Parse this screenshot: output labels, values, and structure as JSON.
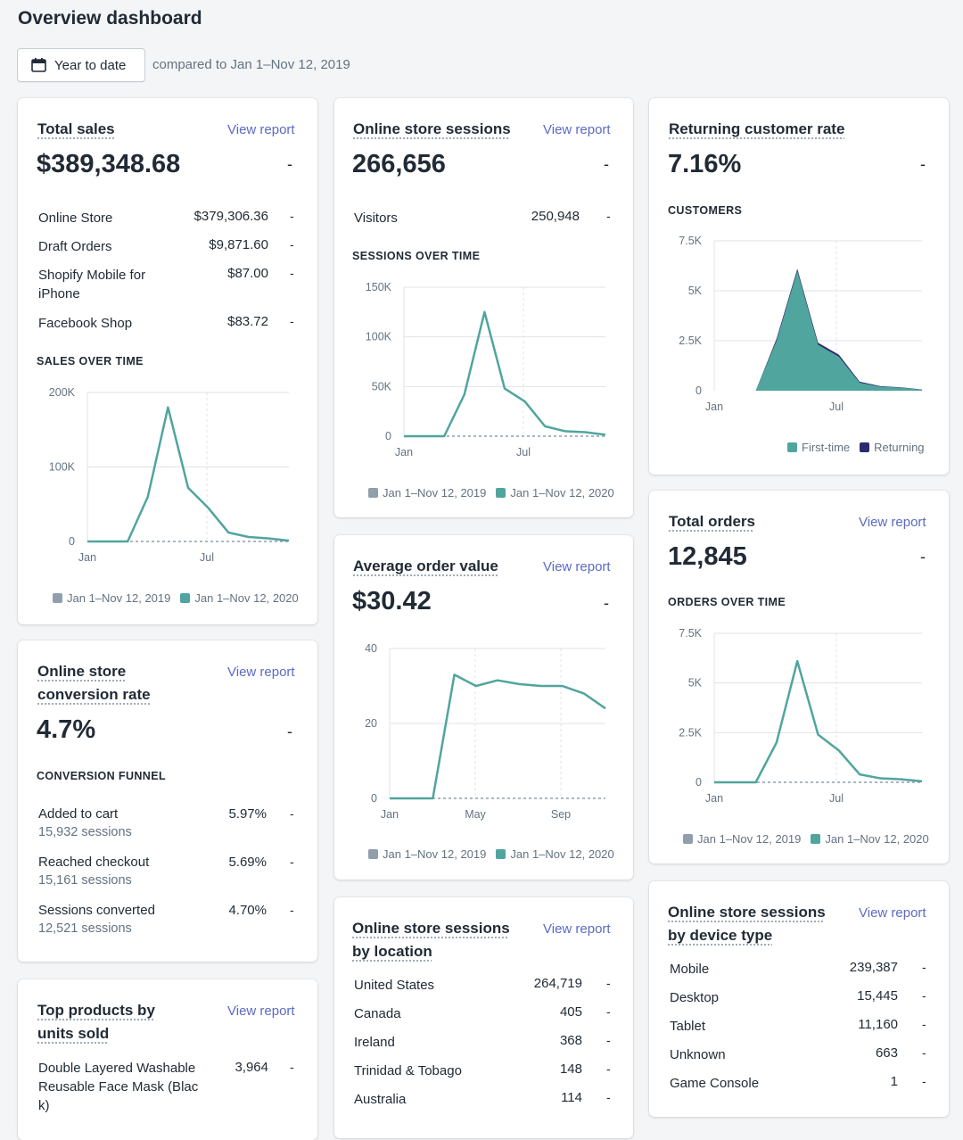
{
  "header": {
    "title": "Overview dashboard",
    "date_button": "Year to date",
    "compared": "compared to Jan 1–Nov 12, 2019"
  },
  "colors": {
    "current": "#50a59e",
    "previous": "#919eab",
    "returning": "#2c2a6e",
    "link": "#5c6ac4"
  },
  "legend": {
    "prev": "Jan 1–Nov 12, 2019",
    "curr": "Jan 1–Nov 12, 2020",
    "first_time": "First-time",
    "returning": "Returning"
  },
  "view_report": "View report",
  "dash": "-",
  "total_sales": {
    "title": "Total sales",
    "value": "$389,348.68",
    "rows": [
      {
        "label": "Online Store",
        "value": "$379,306.36"
      },
      {
        "label": "Draft Orders",
        "value": "$9,871.60"
      },
      {
        "label": "Shopify Mobile for iPhone",
        "value": "$87.00"
      },
      {
        "label": "Facebook Shop",
        "value": "$83.72"
      }
    ],
    "chart_title": "SALES OVER TIME"
  },
  "sessions": {
    "title": "Online store sessions",
    "value": "266,656",
    "visitors_label": "Visitors",
    "visitors_value": "250,948",
    "chart_title": "SESSIONS OVER TIME"
  },
  "returning": {
    "title": "Returning customer rate",
    "value": "7.16%",
    "chart_title": "CUSTOMERS"
  },
  "conversion": {
    "title": "Online store conversion rate",
    "value": "4.7%",
    "chart_title": "CONVERSION FUNNEL",
    "rows": [
      {
        "label": "Added to cart",
        "sub": "15,932 sessions",
        "value": "5.97%"
      },
      {
        "label": "Reached checkout",
        "sub": "15,161 sessions",
        "value": "5.69%"
      },
      {
        "label": "Sessions converted",
        "sub": "12,521 sessions",
        "value": "4.70%"
      }
    ]
  },
  "aov": {
    "title": "Average order value",
    "value": "$30.42"
  },
  "orders": {
    "title": "Total orders",
    "value": "12,845",
    "chart_title": "ORDERS OVER TIME"
  },
  "top_products": {
    "title": "Top products by units sold",
    "rows": [
      {
        "label": "Double Layered Washable Reusable Face Mask (Black)",
        "value": "3,964"
      }
    ]
  },
  "location": {
    "title": "Online store sessions by location",
    "rows": [
      {
        "label": "United States",
        "value": "264,719"
      },
      {
        "label": "Canada",
        "value": "405"
      },
      {
        "label": "Ireland",
        "value": "368"
      },
      {
        "label": "Trinidad & Tobago",
        "value": "148"
      },
      {
        "label": "Australia",
        "value": "114"
      }
    ]
  },
  "device": {
    "title": "Online store sessions by device type",
    "rows": [
      {
        "label": "Mobile",
        "value": "239,387"
      },
      {
        "label": "Desktop",
        "value": "15,445"
      },
      {
        "label": "Tablet",
        "value": "11,160"
      },
      {
        "label": "Unknown",
        "value": "663"
      },
      {
        "label": "Game Console",
        "value": "1"
      }
    ]
  },
  "chart_data": [
    {
      "type": "line",
      "title": "SALES OVER TIME",
      "yticks": [
        "200K",
        "100K",
        "0"
      ],
      "xticks": [
        "Jan",
        "Jul"
      ],
      "ylim": [
        0,
        200000
      ],
      "series": [
        {
          "name": "Jan 1–Nov 12, 2019",
          "values": [
            0,
            0,
            0,
            0,
            0,
            0,
            0,
            0,
            0,
            0,
            0
          ]
        },
        {
          "name": "Jan 1–Nov 12, 2020",
          "values": [
            0,
            0,
            0,
            60000,
            180000,
            72000,
            45000,
            12000,
            6000,
            4000,
            1000
          ]
        }
      ]
    },
    {
      "type": "line",
      "title": "SESSIONS OVER TIME",
      "yticks": [
        "150K",
        "100K",
        "50K",
        "0"
      ],
      "xticks": [
        "Jan",
        "Jul"
      ],
      "ylim": [
        0,
        150000
      ],
      "series": [
        {
          "name": "Jan 1–Nov 12, 2019",
          "values": [
            0,
            0,
            0,
            0,
            0,
            0,
            0,
            0,
            0,
            0,
            0
          ]
        },
        {
          "name": "Jan 1–Nov 12, 2020",
          "values": [
            0,
            0,
            0,
            42000,
            125000,
            48000,
            35000,
            10000,
            5000,
            4000,
            1500
          ]
        }
      ]
    },
    {
      "type": "area",
      "title": "CUSTOMERS",
      "yticks": [
        "7.5K",
        "5K",
        "2.5K",
        "0"
      ],
      "xticks": [
        "Jan",
        "Jul"
      ],
      "ylim": [
        0,
        7500
      ],
      "series": [
        {
          "name": "First-time",
          "values": [
            0,
            0,
            0,
            2500,
            6000,
            2300,
            1700,
            400,
            200,
            150,
            50
          ]
        },
        {
          "name": "Returning",
          "values": [
            0,
            0,
            0,
            2600,
            6100,
            2400,
            1800,
            450,
            230,
            170,
            60
          ]
        }
      ]
    },
    {
      "type": "line",
      "title": "Average order value",
      "yticks": [
        "40",
        "20",
        "0"
      ],
      "xticks": [
        "Jan",
        "May",
        "Sep"
      ],
      "ylim": [
        0,
        40
      ],
      "series": [
        {
          "name": "Jan 1–Nov 12, 2019",
          "values": [
            0,
            0,
            0,
            0,
            0,
            0,
            0,
            0,
            0,
            0,
            0
          ]
        },
        {
          "name": "Jan 1–Nov 12, 2020",
          "values": [
            0,
            0,
            0,
            33,
            30,
            31.5,
            30.5,
            30,
            30,
            28,
            24
          ]
        }
      ]
    },
    {
      "type": "line",
      "title": "ORDERS OVER TIME",
      "yticks": [
        "7.5K",
        "5K",
        "2.5K",
        "0"
      ],
      "xticks": [
        "Jan",
        "Jul"
      ],
      "ylim": [
        0,
        7500
      ],
      "series": [
        {
          "name": "Jan 1–Nov 12, 2019",
          "values": [
            0,
            0,
            0,
            0,
            0,
            0,
            0,
            0,
            0,
            0,
            0
          ]
        },
        {
          "name": "Jan 1–Nov 12, 2020",
          "values": [
            0,
            0,
            0,
            2000,
            6100,
            2400,
            1600,
            400,
            200,
            150,
            50
          ]
        }
      ]
    }
  ]
}
